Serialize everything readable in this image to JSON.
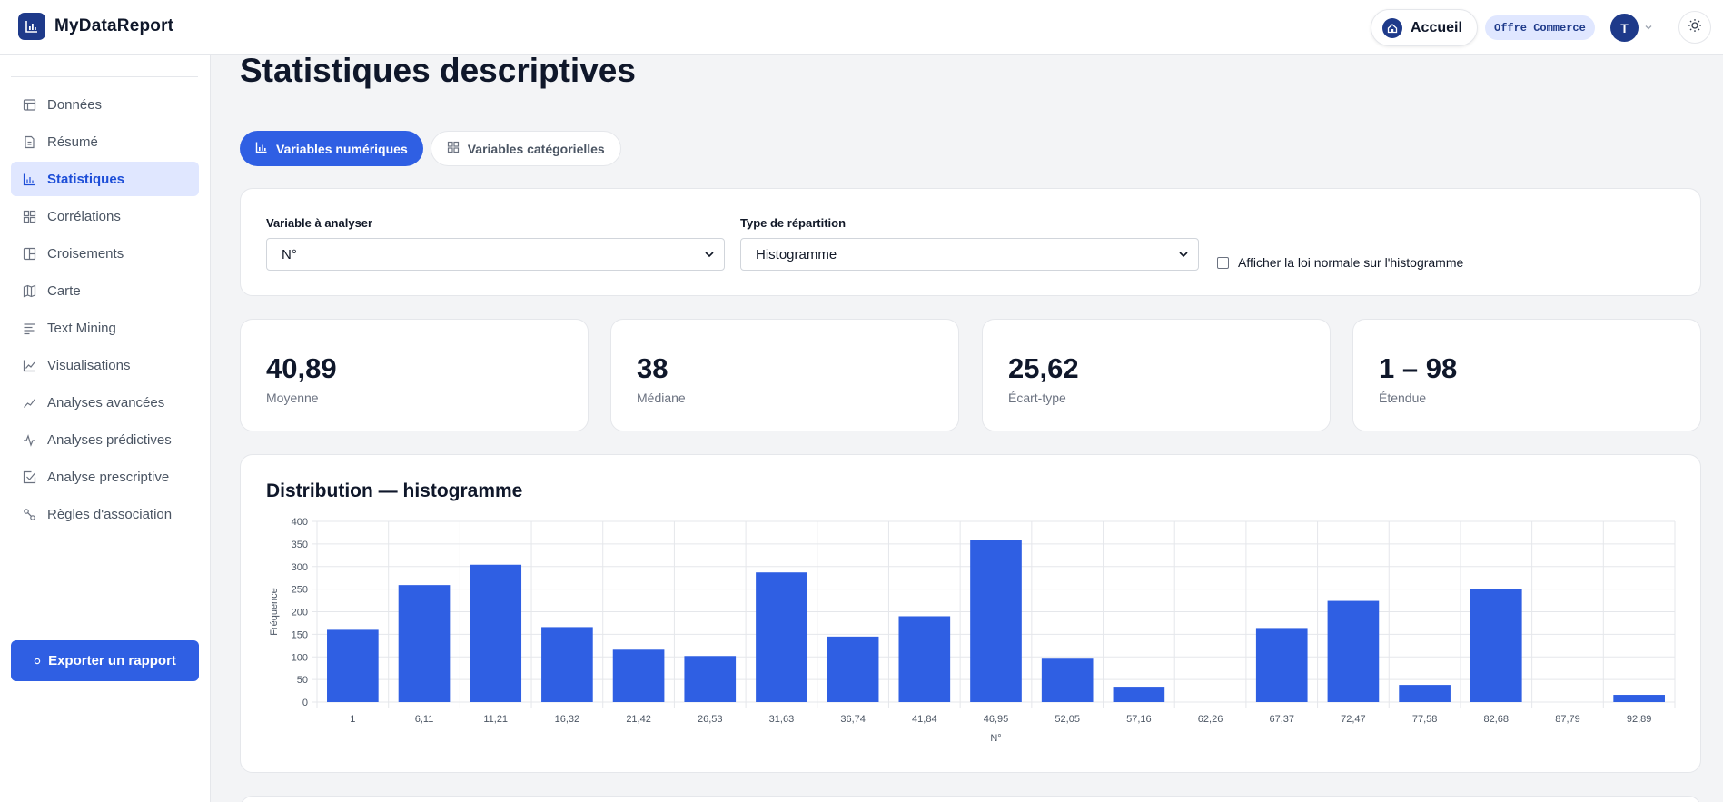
{
  "app": {
    "name": "MyDataReport"
  },
  "header": {
    "home_label": "Accueil",
    "plan_badge": "Offre Commerce",
    "user_initial": "T"
  },
  "sidebar": {
    "items": [
      {
        "label": "Données",
        "icon": "table-icon",
        "active": false
      },
      {
        "label": "Résumé",
        "icon": "document-icon",
        "active": false
      },
      {
        "label": "Statistiques",
        "icon": "bar-chart-icon",
        "active": true
      },
      {
        "label": "Corrélations",
        "icon": "grid-icon",
        "active": false
      },
      {
        "label": "Croisements",
        "icon": "columns-icon",
        "active": false
      },
      {
        "label": "Carte",
        "icon": "map-icon",
        "active": false
      },
      {
        "label": "Text Mining",
        "icon": "text-lines-icon",
        "active": false
      },
      {
        "label": "Visualisations",
        "icon": "line-chart-icon",
        "active": false
      },
      {
        "label": "Analyses avancées",
        "icon": "trend-icon",
        "active": false
      },
      {
        "label": "Analyses prédictives",
        "icon": "pulse-icon",
        "active": false
      },
      {
        "label": "Analyse prescriptive",
        "icon": "check-square-icon",
        "active": false
      },
      {
        "label": "Règles d'association",
        "icon": "link-icon",
        "active": false
      }
    ],
    "export_label": "Exporter un rapport"
  },
  "page": {
    "title": "Statistiques descriptives",
    "tabs": [
      {
        "label": "Variables numériques",
        "active": true
      },
      {
        "label": "Variables catégorielles",
        "active": false
      }
    ]
  },
  "filters": {
    "variable_label": "Variable à analyser",
    "variable_value": "N°",
    "type_label": "Type de répartition",
    "type_value": "Histogramme",
    "normal_label": "Afficher la loi normale sur l'histogramme",
    "normal_checked": false
  },
  "stats": [
    {
      "value": "40,89",
      "label": "Moyenne"
    },
    {
      "value": "38",
      "label": "Médiane"
    },
    {
      "value": "25,62",
      "label": "Écart-type"
    },
    {
      "value": "1 – 98",
      "label": "Étendue"
    }
  ],
  "chart": {
    "title": "Distribution — histogramme"
  },
  "chart_data": {
    "type": "bar",
    "categories": [
      "1",
      "6,11",
      "11,21",
      "16,32",
      "21,42",
      "26,53",
      "31,63",
      "36,74",
      "41,84",
      "46,95",
      "52,05",
      "57,16",
      "62,26",
      "67,37",
      "72,47",
      "77,58",
      "82,68",
      "87,79",
      "92,89"
    ],
    "values": [
      160,
      259,
      304,
      166,
      116,
      102,
      287,
      145,
      190,
      359,
      96,
      34,
      0,
      164,
      224,
      38,
      250,
      0,
      16
    ],
    "xlabel": "N°",
    "ylabel": "Fréquence",
    "ylim": [
      0,
      400
    ],
    "yticks": [
      0,
      50,
      100,
      150,
      200,
      250,
      300,
      350,
      400
    ],
    "color": "#2f5fe3",
    "grid": true
  }
}
